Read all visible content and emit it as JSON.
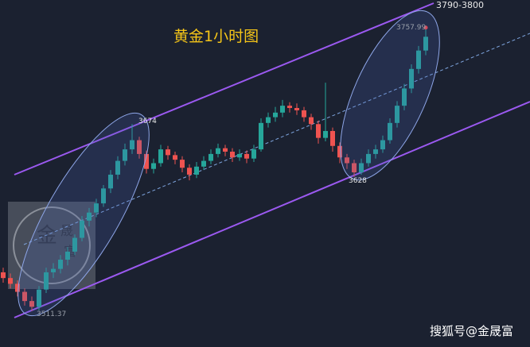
{
  "chart_data": {
    "type": "candlestick",
    "title": "黄金1小时图",
    "target_label": "3790-3800",
    "watermark": "搜狐号@金晟富",
    "logo": [
      "金",
      "晟",
      "富"
    ],
    "ylim": [
      3480,
      3782
    ],
    "up_color": "#26a69a",
    "down_color": "#ef5350",
    "open": [
      3545,
      3540,
      3535,
      3528,
      3520,
      3515,
      3530,
      3545,
      3548,
      3556,
      3563,
      3575,
      3590,
      3597,
      3605,
      3618,
      3630,
      3642,
      3652,
      3660,
      3648,
      3635,
      3640,
      3652,
      3647,
      3643,
      3636,
      3630,
      3637,
      3642,
      3648,
      3653,
      3650,
      3645,
      3648,
      3644,
      3652,
      3675,
      3680,
      3684,
      3690,
      3688,
      3686,
      3680,
      3674,
      3662,
      3668,
      3655,
      3645,
      3640,
      3632,
      3640,
      3648,
      3652,
      3660,
      3675,
      3690,
      3705,
      3722,
      3738
    ],
    "high": [
      3549,
      3544,
      3538,
      3531,
      3524,
      3533,
      3549,
      3553,
      3560,
      3567,
      3578,
      3594,
      3601,
      3609,
      3621,
      3634,
      3646,
      3657,
      3674,
      3663,
      3651,
      3644,
      3656,
      3655,
      3650,
      3646,
      3639,
      3641,
      3646,
      3652,
      3657,
      3656,
      3653,
      3652,
      3651,
      3656,
      3679,
      3684,
      3689,
      3695,
      3693,
      3692,
      3689,
      3683,
      3677,
      3710,
      3671,
      3658,
      3648,
      3643,
      3644,
      3652,
      3656,
      3664,
      3679,
      3694,
      3709,
      3726,
      3742,
      3757.99
    ],
    "low": [
      3536,
      3531,
      3524,
      3516,
      3511.37,
      3512,
      3527,
      3540,
      3544,
      3551,
      3560,
      3572,
      3585,
      3593,
      3602,
      3614,
      3626,
      3638,
      3648,
      3644,
      3631,
      3631,
      3637,
      3643,
      3639,
      3632,
      3625,
      3627,
      3634,
      3639,
      3645,
      3646,
      3641,
      3642,
      3640,
      3641,
      3650,
      3671,
      3676,
      3680,
      3684,
      3682,
      3676,
      3669,
      3657,
      3659,
      3650,
      3640,
      3635,
      3628,
      3630,
      3637,
      3644,
      3649,
      3657,
      3671,
      3686,
      3701,
      3718,
      3734
    ],
    "close": [
      3540,
      3535,
      3528,
      3520,
      3515,
      3530,
      3545,
      3548,
      3556,
      3563,
      3575,
      3590,
      3597,
      3605,
      3618,
      3630,
      3642,
      3652,
      3660,
      3648,
      3635,
      3640,
      3652,
      3647,
      3643,
      3636,
      3630,
      3637,
      3642,
      3648,
      3653,
      3650,
      3645,
      3648,
      3644,
      3652,
      3675,
      3680,
      3684,
      3690,
      3688,
      3686,
      3680,
      3674,
      3662,
      3668,
      3655,
      3645,
      3640,
      3632,
      3640,
      3648,
      3652,
      3660,
      3675,
      3690,
      3705,
      3722,
      3738,
      3750
    ]
  }
}
